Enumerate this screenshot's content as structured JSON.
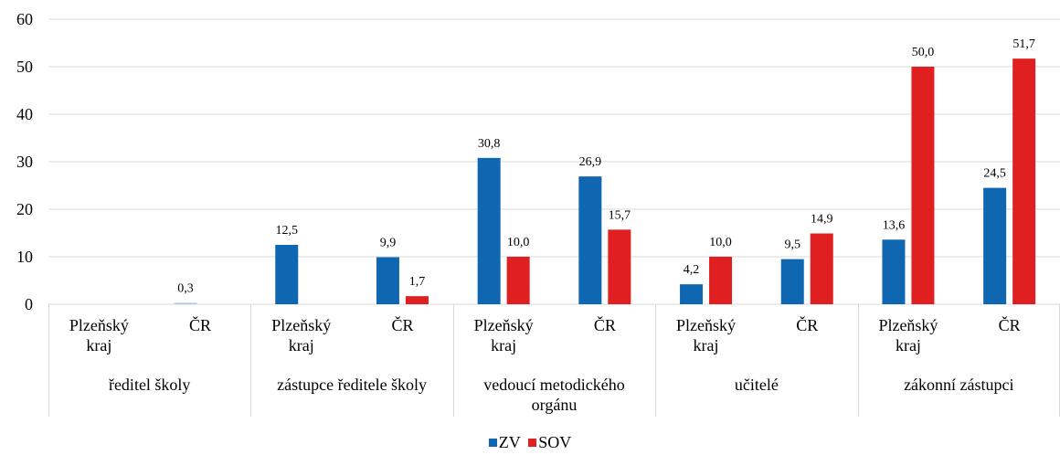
{
  "chart_data": {
    "type": "bar",
    "groups": [
      "ředitel školy",
      "zástupce ředitele školy",
      "vedoucí metodického orgánu",
      "učitelé",
      "zákonní zástupci"
    ],
    "subcategories": [
      "Plzeňský kraj",
      "ČR"
    ],
    "series": [
      {
        "name": "ZV",
        "color": "#0f67b1",
        "values": [
          [
            null,
            0.3
          ],
          [
            12.5,
            9.9
          ],
          [
            30.8,
            26.9
          ],
          [
            4.2,
            9.5
          ],
          [
            13.6,
            24.5
          ]
        ]
      },
      {
        "name": "SOV",
        "color": "#e02020",
        "values": [
          [
            null,
            null
          ],
          [
            null,
            1.7
          ],
          [
            10.0,
            15.7
          ],
          [
            10.0,
            14.9
          ],
          [
            50.0,
            51.7
          ]
        ]
      }
    ],
    "ylim": [
      0,
      60
    ],
    "yticks": [
      "0",
      "10",
      "20",
      "30",
      "40",
      "50",
      "60"
    ],
    "labels": [
      [
        "",
        "0,3",
        "12,5",
        "9,9",
        "30,8",
        "26,9",
        "4,2",
        "9,5",
        "13,6",
        "24,5"
      ],
      [
        "",
        "",
        "",
        "1,7",
        "10,0",
        "15,7",
        "10,0",
        "14,9",
        "50,0",
        "51,7"
      ]
    ],
    "grid": true,
    "legend_position": "bottom"
  },
  "legend": [
    {
      "label": "ZV",
      "color": "#0f67b1"
    },
    {
      "label": "SOV",
      "color": "#e02020"
    }
  ]
}
